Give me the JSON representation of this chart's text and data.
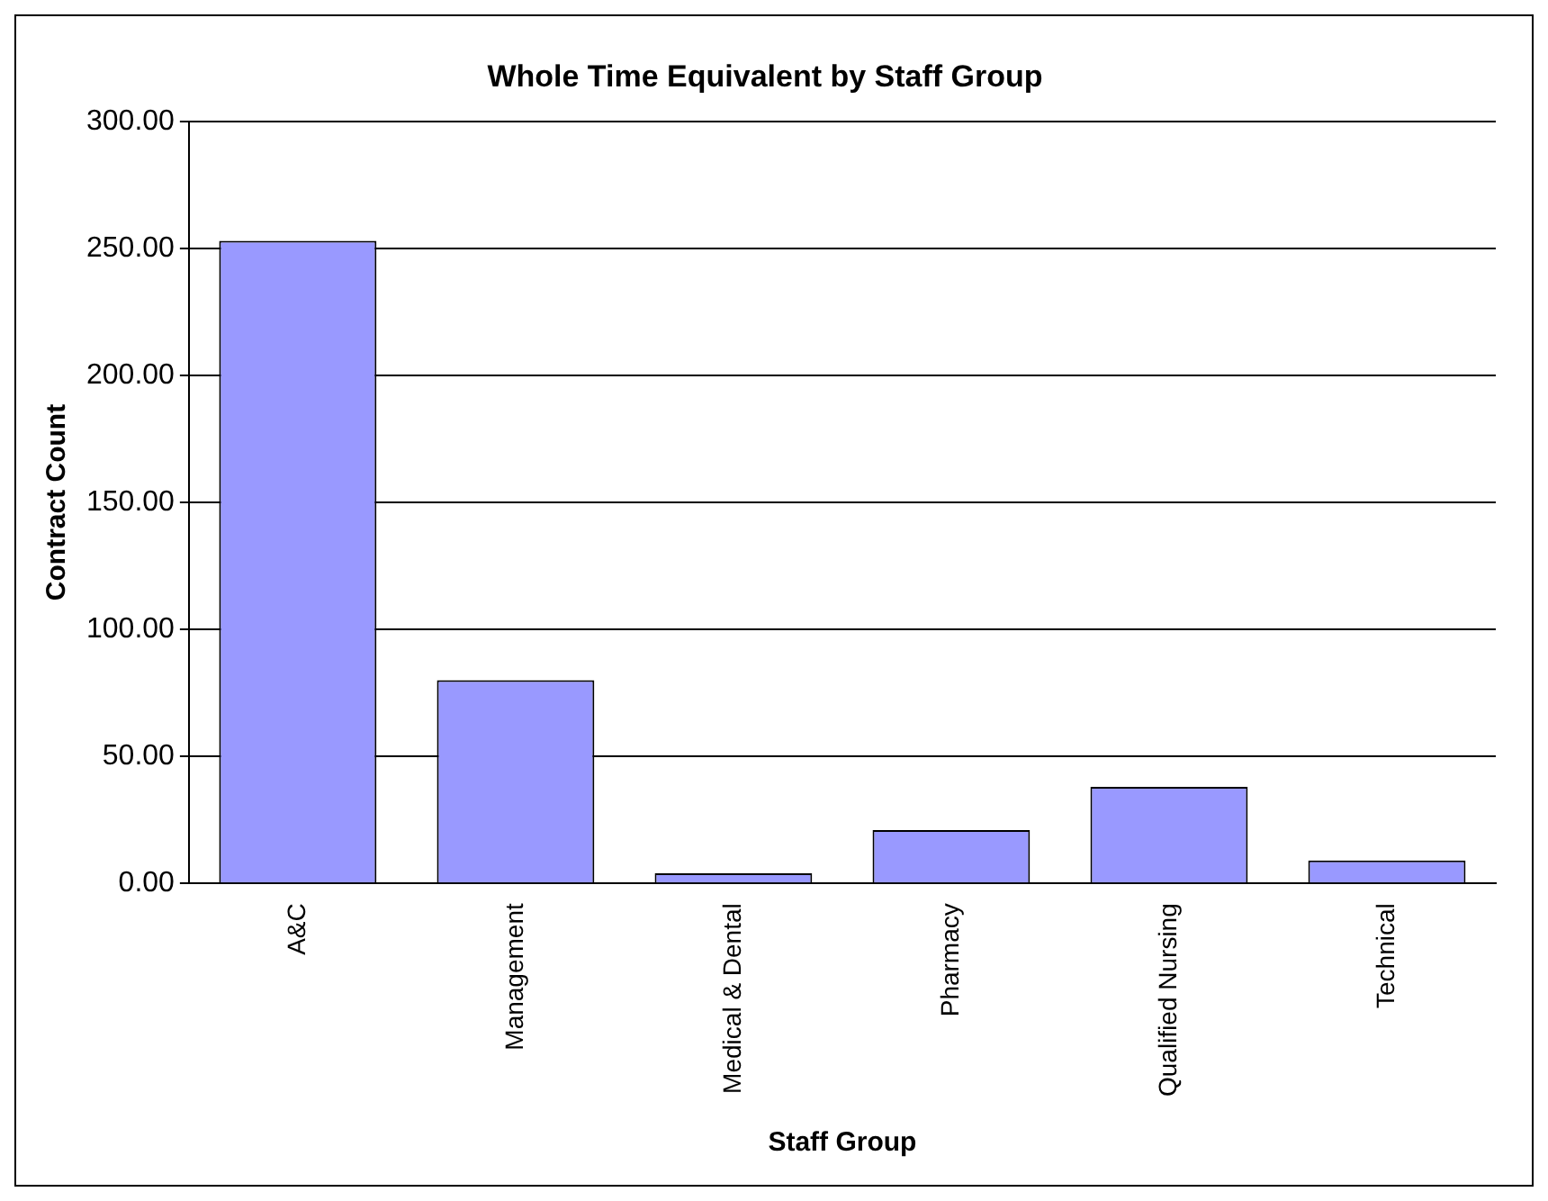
{
  "chart_data": {
    "type": "bar",
    "title": "Whole Time Equivalent by Staff Group",
    "xlabel": "Staff Group",
    "ylabel": "Contract Count",
    "categories": [
      "A&C",
      "Management",
      "Medical & Dental",
      "Pharmacy",
      "Qualified Nursing",
      "Technical"
    ],
    "values": [
      253,
      80,
      4,
      21,
      38,
      9
    ],
    "color": "#9999ff",
    "ylim": [
      0,
      300
    ],
    "yticks": [
      {
        "value": 0,
        "label": "0.00"
      },
      {
        "value": 50,
        "label": "50.00"
      },
      {
        "value": 100,
        "label": "100.00"
      },
      {
        "value": 150,
        "label": "150.00"
      },
      {
        "value": 200,
        "label": "200.00"
      },
      {
        "value": 250,
        "label": "250.00"
      },
      {
        "value": 300,
        "label": "300.00"
      }
    ],
    "grid": "y",
    "legend": false
  }
}
